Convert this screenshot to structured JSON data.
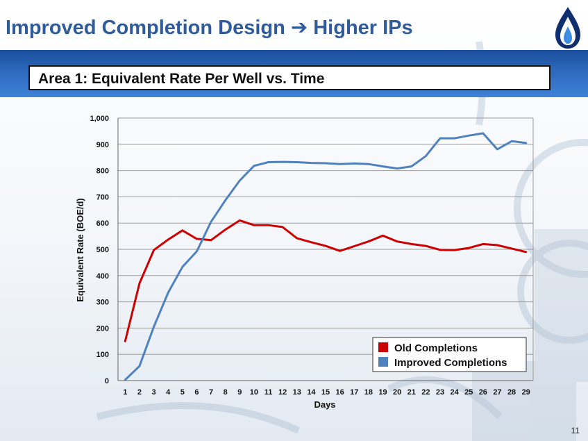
{
  "slide": {
    "title": "Improved Completion Design ➔ Higher IPs",
    "subtitle": "Area 1: Equivalent Rate Per Well vs. Time",
    "page_number": "11",
    "accent_color": "#2f5b9a",
    "band_color": "#2f6cc0",
    "logo_icon": "flame-drop-icon"
  },
  "chart_data": {
    "type": "line",
    "title": "",
    "xlabel": "Days",
    "ylabel": "Equivalent  Rate (BOE/d)",
    "categories": [
      1,
      2,
      3,
      4,
      5,
      6,
      7,
      8,
      9,
      10,
      11,
      12,
      13,
      14,
      15,
      16,
      17,
      18,
      19,
      20,
      21,
      22,
      23,
      24,
      25,
      26,
      27,
      28,
      29
    ],
    "ylim": [
      0,
      1000
    ],
    "y_ticks": [
      "0",
      "100",
      "200",
      "300",
      "400",
      "500",
      "600",
      "700",
      "800",
      "900",
      "1,000"
    ],
    "grid": true,
    "legend_position": "bottom-right",
    "series": [
      {
        "name": "Old Completions",
        "color": "#cc0000",
        "values": [
          150,
          370,
          497,
          537,
          572,
          540,
          535,
          575,
          610,
          592,
          592,
          585,
          542,
          527,
          513,
          494,
          512,
          530,
          552,
          530,
          520,
          513,
          498,
          497,
          505,
          520,
          516,
          503,
          490
        ]
      },
      {
        "name": "Improved Completions",
        "color": "#4f81bd",
        "values": [
          3,
          55,
          205,
          335,
          433,
          492,
          605,
          687,
          762,
          818,
          832,
          833,
          832,
          829,
          828,
          825,
          827,
          825,
          816,
          808,
          816,
          855,
          923,
          923,
          933,
          942,
          881,
          912,
          905
        ]
      }
    ]
  }
}
